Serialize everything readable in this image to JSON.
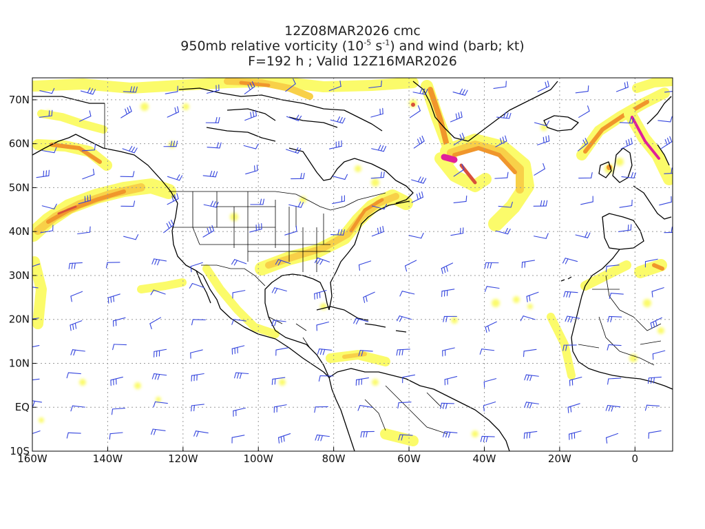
{
  "title": {
    "line1": "12Z08MAR2026 cmc",
    "line2_pre": "950mb relative vorticity (10",
    "line2_exp1": "-5",
    "line2_mid": " s",
    "line2_exp2": "-1",
    "line2_post": ") and wind (barb; kt)",
    "line3": "F=192 h ; Valid 12Z16MAR2026"
  },
  "axes": {
    "lon_labels": [
      "160W",
      "140W",
      "120W",
      "100W",
      "80W",
      "60W",
      "40W",
      "20W",
      "0"
    ],
    "lat_labels": [
      "70N",
      "60N",
      "50N",
      "40N",
      "30N",
      "20N",
      "10N",
      "EQ",
      "10S"
    ],
    "lon_values": [
      -160,
      -140,
      -120,
      -100,
      -80,
      -60,
      -40,
      -20,
      0
    ],
    "lat_values": [
      70,
      60,
      50,
      40,
      30,
      20,
      10,
      0,
      -10
    ],
    "lon_range": [
      -160,
      10
    ],
    "lat_range": [
      -10,
      75
    ]
  },
  "colors": {
    "shade_low": "#fbfb6a",
    "shade_mid": "#f8d048",
    "shade_orange": "#f0962c",
    "shade_red": "#d8503a",
    "shade_magenta": "#e0209a",
    "coastline": "#000000",
    "wind_barb": "#3344dd",
    "grid": "#999999"
  }
}
